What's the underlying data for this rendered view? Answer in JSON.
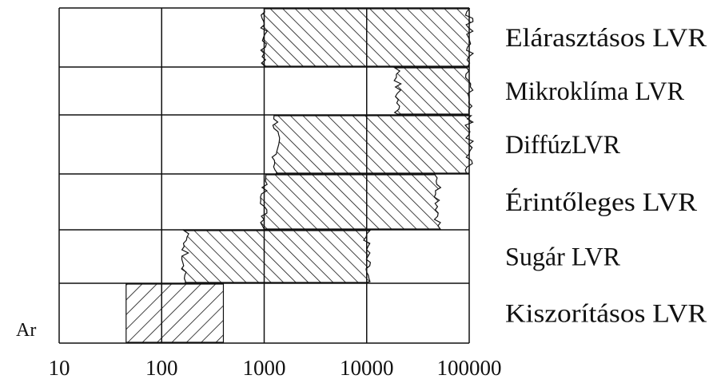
{
  "chart_data": {
    "type": "bar",
    "orientation": "horizontal-range",
    "x_scale": "log",
    "xlim": [
      10,
      100000
    ],
    "x_ticks": [
      "10",
      "100",
      "1000",
      "10000",
      "100000"
    ],
    "x_tick_values": [
      10,
      100,
      1000,
      10000,
      100000
    ],
    "y_axis_label": "Ar",
    "grid": true,
    "ranges": [
      {
        "label": "Elárasztásos LVR",
        "start": 1000,
        "end": 100000,
        "left_edge": "jagged",
        "right_edge": "jagged"
      },
      {
        "label": "Mikroklíma LVR",
        "start": 20000,
        "end": 100000,
        "left_edge": "jagged",
        "right_edge": "jagged"
      },
      {
        "label": "DiffúzLVR",
        "start": 1300,
        "end": 100000,
        "left_edge": "jagged",
        "right_edge": "jagged"
      },
      {
        "label": "Érintőleges LVR",
        "start": 1000,
        "end": 50000,
        "left_edge": "jagged",
        "right_edge": "jagged"
      },
      {
        "label": "Sugár LVR",
        "start": 170,
        "end": 10000,
        "left_edge": "jagged",
        "right_edge": "jagged"
      },
      {
        "label": "Kiszorításos LVR",
        "start": 45,
        "end": 400,
        "left_edge": "straight",
        "right_edge": "straight"
      }
    ],
    "colors": {
      "line": "#111111",
      "background": "#ffffff"
    }
  }
}
